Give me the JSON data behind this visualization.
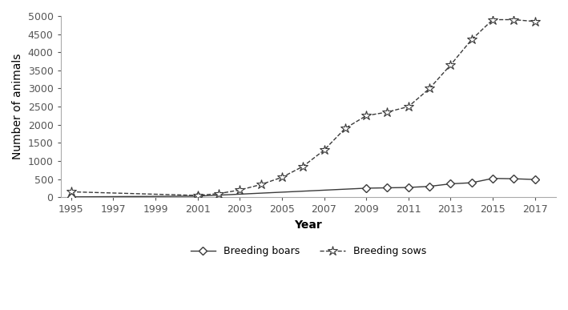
{
  "boars_years": [
    1995,
    2001,
    2009,
    2010,
    2011,
    2012,
    2013,
    2014,
    2015,
    2016,
    2017
  ],
  "boars_values": [
    10,
    30,
    250,
    260,
    270,
    300,
    370,
    400,
    520,
    510,
    490
  ],
  "sows_years": [
    1995,
    2001,
    2002,
    2003,
    2004,
    2005,
    2006,
    2007,
    2008,
    2009,
    2010,
    2011,
    2012,
    2013,
    2014,
    2015,
    2016,
    2017
  ],
  "sows_values": [
    150,
    50,
    100,
    200,
    350,
    550,
    850,
    1300,
    1900,
    2250,
    2350,
    2500,
    3000,
    3650,
    4350,
    4900,
    4900,
    4850
  ],
  "xlabel": "Year",
  "ylabel": "Number of animals",
  "ylim": [
    0,
    5000
  ],
  "xlim": [
    1994.5,
    2018
  ],
  "yticks": [
    0,
    500,
    1000,
    1500,
    2000,
    2500,
    3000,
    3500,
    4000,
    4500,
    5000
  ],
  "xticks": [
    1995,
    1997,
    1999,
    2001,
    2003,
    2005,
    2007,
    2009,
    2011,
    2013,
    2015,
    2017
  ],
  "line_color": "#3a3a3a",
  "legend_boars": "Breeding boars",
  "legend_sows": "Breeding sows"
}
